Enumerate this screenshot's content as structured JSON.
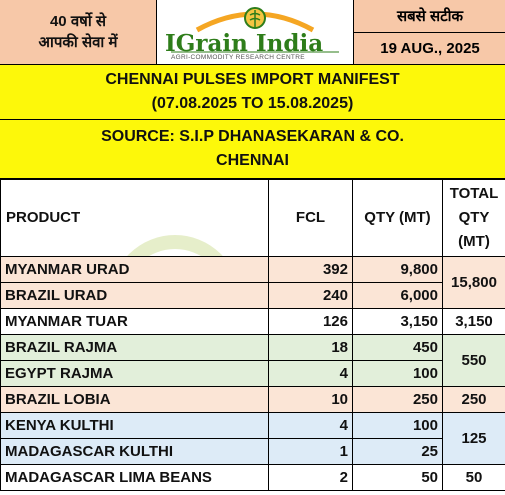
{
  "header": {
    "left_line1": "40 वर्षो से",
    "left_line2": "आपकी सेवा में",
    "logo_text": "IGrain India",
    "logo_subtitle": "AGRI-COMMODITY RESEARCH CENTRE",
    "right_line1": "सबसे सटीक",
    "date": "19 AUG., 2025"
  },
  "title": {
    "line1": "CHENNAI PULSES IMPORT MANIFEST",
    "line2": "(07.08.2025 TO 15.08.2025)"
  },
  "source": {
    "line1": "SOURCE: S.I.P DHANASEKARAN & CO.",
    "line2": "CHENNAI"
  },
  "table": {
    "headers": {
      "product": "PRODUCT",
      "fcl": "FCL",
      "qty": "QTY (MT)",
      "total": "TOTAL QTY (MT)"
    },
    "rows": [
      {
        "product": "MYANMAR URAD",
        "fcl": "392",
        "qty": "9,800"
      },
      {
        "product": "BRAZIL URAD",
        "fcl": "240",
        "qty": "6,000"
      },
      {
        "product": "MYANMAR TUAR",
        "fcl": "126",
        "qty": "3,150"
      },
      {
        "product": "BRAZIL RAJMA",
        "fcl": "18",
        "qty": "450"
      },
      {
        "product": "EGYPT RAJMA",
        "fcl": "4",
        "qty": "100"
      },
      {
        "product": "BRAZIL LOBIA",
        "fcl": "10",
        "qty": "250"
      },
      {
        "product": "KENYA KULTHI",
        "fcl": "4",
        "qty": "100"
      },
      {
        "product": "MADAGASCAR KULTHI",
        "fcl": "1",
        "qty": "25"
      },
      {
        "product": "MADAGASCAR LIMA BEANS",
        "fcl": "2",
        "qty": "50"
      }
    ],
    "totals": [
      "15,800",
      "3,150",
      "550",
      "250",
      "125",
      "50"
    ],
    "row_colors": [
      "#fbe5d6",
      "#fbe5d6",
      "#ffffff",
      "#e2efda",
      "#e2efda",
      "#fbe5d6",
      "#ddebf7",
      "#ddebf7",
      "#ffffff"
    ]
  }
}
